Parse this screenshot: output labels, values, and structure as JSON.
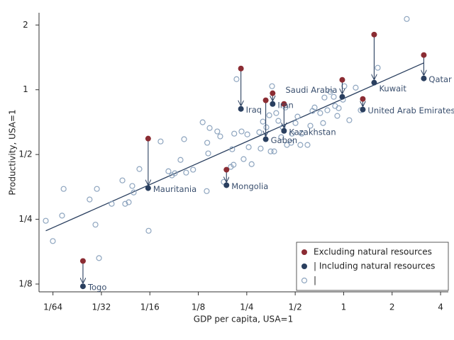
{
  "chart_data": {
    "type": "scatter",
    "x_label": "GDP per capita, USA=1",
    "y_label": "Productivity, USA=1",
    "log_x": true,
    "log_y": true,
    "xlim": [
      0.0128,
      4.47
    ],
    "ylim": [
      0.115,
      2.28
    ],
    "xticks": [
      {
        "value": 0.015625,
        "label": "1/64"
      },
      {
        "value": 0.03125,
        "label": "1/32"
      },
      {
        "value": 0.0625,
        "label": "1/16"
      },
      {
        "value": 0.125,
        "label": "1/8"
      },
      {
        "value": 0.25,
        "label": "1/4"
      },
      {
        "value": 0.5,
        "label": "1/2"
      },
      1,
      2,
      4
    ],
    "yticks": [
      {
        "value": 0.125,
        "label": "1/8"
      },
      {
        "value": 0.25,
        "label": "1/4"
      },
      {
        "value": 0.5,
        "label": "1/2"
      },
      1,
      2
    ],
    "legend_position": "lower right",
    "series": [
      {
        "name": "Excluding natural resources",
        "color": "#8b2c33",
        "x": [
          0.024,
          0.061,
          0.187,
          0.23,
          0.328,
          0.362,
          0.426,
          0.98,
          1.315,
          1.547,
          3.147
        ],
        "values": [
          0.16,
          0.593,
          0.425,
          1.255,
          0.893,
          0.963,
          0.859,
          1.112,
          0.906,
          1.805,
          1.45
        ]
      },
      {
        "name": "| Including natural resources",
        "color": "#2a3f5f",
        "x": [
          0.024,
          0.061,
          0.187,
          0.23,
          0.328,
          0.362,
          0.426,
          0.98,
          1.315,
          1.547,
          3.147
        ],
        "values": [
          0.122,
          0.349,
          0.36,
          0.815,
          0.589,
          0.859,
          0.644,
          0.927,
          0.809,
          1.079,
          1.129
        ],
        "labels": [
          "Togo",
          "Mauritania",
          "Mongolia",
          "Iraq",
          "Gabon",
          "Iran",
          "Kazakhstan",
          "Saudi Arabia",
          "United Arab Emirates",
          "Kuwait",
          "Qatar"
        ]
      },
      {
        "name": "|",
        "color": "#8ea5bf",
        "x": [
          0.0141,
          0.0156,
          0.0182,
          0.0178,
          0.0264,
          0.0293,
          0.0287,
          0.0302,
          0.0362,
          0.0422,
          0.0439,
          0.0462,
          0.0486,
          0.0496,
          0.0538,
          0.0614,
          0.0729,
          0.0815,
          0.0857,
          0.0893,
          0.0969,
          0.102,
          0.105,
          0.116,
          0.133,
          0.141,
          0.142,
          0.144,
          0.147,
          0.164,
          0.171,
          0.18,
          0.199,
          0.207,
          0.203,
          0.209,
          0.232,
          0.239,
          0.252,
          0.257,
          0.268,
          0.216,
          0.299,
          0.305,
          0.315,
          0.331,
          0.345,
          0.352,
          0.359,
          0.37,
          0.381,
          0.393,
          0.409,
          0.418,
          0.435,
          0.444,
          0.472,
          0.477,
          0.502,
          0.517,
          0.538,
          0.549,
          0.596,
          0.621,
          0.64,
          0.66,
          0.715,
          0.745,
          0.76,
          0.792,
          0.825,
          0.868,
          0.885,
          0.913,
          0.932,
          0.99,
          1.01,
          1.084,
          1.188,
          1.276,
          1.628,
          2.467
        ],
        "values": [
          0.246,
          0.198,
          0.346,
          0.26,
          0.309,
          0.346,
          0.236,
          0.165,
          0.295,
          0.379,
          0.295,
          0.3,
          0.357,
          0.333,
          0.428,
          0.221,
          0.575,
          0.418,
          0.4,
          0.409,
          0.472,
          0.589,
          0.412,
          0.425,
          0.706,
          0.338,
          0.567,
          0.506,
          0.664,
          0.64,
          0.607,
          0.373,
          0.438,
          0.448,
          0.529,
          0.625,
          0.64,
          0.476,
          0.62,
          0.541,
          0.451,
          1.12,
          0.635,
          0.533,
          0.711,
          0.669,
          0.761,
          0.517,
          1.039,
          0.517,
          0.779,
          0.717,
          0.602,
          0.669,
          0.827,
          0.554,
          0.567,
          0.625,
          0.7,
          0.75,
          0.554,
          0.625,
          0.554,
          0.68,
          0.797,
          0.827,
          0.779,
          0.7,
          0.92,
          0.803,
          0.978,
          0.927,
          0.84,
          0.756,
          0.821,
          0.899,
          1.039,
          0.722,
          1.023,
          0.803,
          1.265,
          2.133
        ]
      }
    ],
    "fit": {
      "color": "#2a3f5f",
      "x": [
        0.0141,
        3.147
      ],
      "values": [
        0.221,
        1.333
      ]
    }
  }
}
